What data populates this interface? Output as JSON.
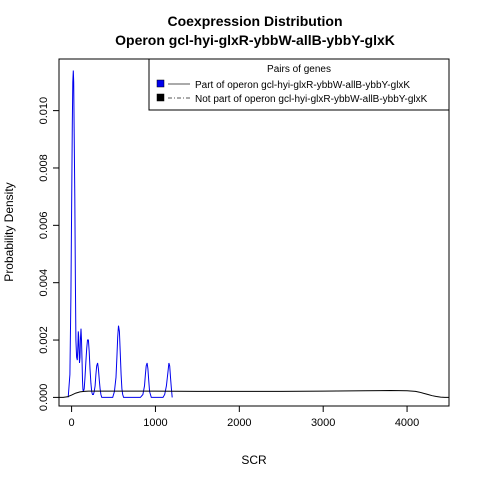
{
  "chart_data": {
    "type": "line",
    "title": "Coexpression Distribution",
    "subtitle": "Operon gcl-hyi-glxR-ybbW-allB-ybbY-glxK",
    "xlabel": "SCR",
    "ylabel": "Probability Density",
    "xlim": [
      -150,
      4500
    ],
    "ylim": [
      -0.0003,
      0.0118
    ],
    "x_ticks": [
      0,
      1000,
      2000,
      3000,
      4000
    ],
    "x_tick_labels": [
      "0",
      "1000",
      "2000",
      "3000",
      "4000"
    ],
    "y_ticks": [
      0.0,
      0.002,
      0.004,
      0.006,
      0.008,
      0.01
    ],
    "y_tick_labels": [
      "0.000",
      "0.002",
      "0.004",
      "0.006",
      "0.008",
      "0.010"
    ],
    "grid": false,
    "legend": {
      "title": "Pairs of genes",
      "placement": "top-right",
      "entries": [
        {
          "label": "Part of operon gcl-hyi-glxR-ybbW-allB-ybbY-glxK",
          "color": "#0000ee",
          "line": "solid"
        },
        {
          "label": "Not part of operon gcl-hyi-glxR-ybbW-allB-ybbY-glxK",
          "color": "#000000",
          "line": "dashdot"
        }
      ]
    },
    "series": [
      {
        "color": "#0000ee",
        "x": [
          -40,
          -20,
          -8,
          0,
          8,
          15,
          20,
          25,
          30,
          38,
          45,
          52,
          60,
          68,
          75,
          80,
          85,
          90,
          95,
          100,
          105,
          112,
          118,
          125,
          130,
          135,
          140,
          150,
          160,
          170,
          180,
          190,
          200,
          210,
          220,
          230,
          240,
          250,
          260,
          270,
          280,
          290,
          300,
          310,
          320,
          330,
          340,
          350,
          360,
          380,
          400,
          430,
          460,
          490,
          510,
          530,
          540,
          550,
          560,
          570,
          580,
          590,
          600,
          610,
          620,
          640,
          670,
          700,
          740,
          780,
          820,
          850,
          870,
          880,
          890,
          900,
          910,
          920,
          930,
          950,
          980,
          1020,
          1060,
          1090,
          1110,
          1130,
          1150,
          1160,
          1170,
          1180,
          1190,
          1200
        ],
        "y": [
          0.0,
          0.0008,
          0.0035,
          0.0065,
          0.0095,
          0.011,
          0.0114,
          0.011,
          0.0095,
          0.007,
          0.004,
          0.002,
          0.0014,
          0.0013,
          0.0018,
          0.0023,
          0.0021,
          0.0016,
          0.0012,
          0.0014,
          0.002,
          0.0024,
          0.002,
          0.0012,
          0.0006,
          0.0003,
          0.0002,
          0.0003,
          0.0007,
          0.0012,
          0.0017,
          0.002,
          0.002,
          0.0016,
          0.001,
          0.0005,
          0.0002,
          0.0001,
          0.0001,
          0.0002,
          0.0004,
          0.0008,
          0.0011,
          0.0012,
          0.001,
          0.0006,
          0.0003,
          0.0001,
          0.0,
          0.0,
          0.0,
          0.0,
          0.0,
          0.0,
          0.0002,
          0.0007,
          0.0014,
          0.0021,
          0.0025,
          0.0023,
          0.0016,
          0.0008,
          0.0003,
          0.0001,
          0.0,
          0.0,
          0.0,
          0.0,
          0.0,
          0.0,
          0.0,
          0.0001,
          0.0004,
          0.0008,
          0.0011,
          0.0012,
          0.001,
          0.0006,
          0.0002,
          0.0,
          0.0,
          0.0,
          0.0,
          0.0,
          0.0001,
          0.0004,
          0.0009,
          0.0012,
          0.0011,
          0.0007,
          0.0003,
          0.0
        ]
      },
      {
        "color": "#000000",
        "x": [
          -150,
          -100,
          -50,
          0,
          50,
          100,
          150,
          200,
          250,
          300,
          400,
          600,
          800,
          1000,
          1500,
          2000,
          2500,
          3000,
          3500,
          3800,
          4000,
          4100,
          4150,
          4200,
          4250,
          4300,
          4350,
          4400,
          4450,
          4500
        ],
        "y": [
          0.0,
          0.0,
          2e-05,
          8e-05,
          0.00015,
          0.00019,
          0.00021,
          0.00022,
          0.00022,
          0.00022,
          0.00022,
          0.00022,
          0.00022,
          0.00022,
          0.00021,
          0.00021,
          0.00021,
          0.00022,
          0.00023,
          0.00024,
          0.00023,
          0.00021,
          0.00018,
          0.00014,
          0.0001,
          6e-05,
          3e-05,
          1e-05,
          0.0,
          0.0
        ]
      }
    ]
  }
}
